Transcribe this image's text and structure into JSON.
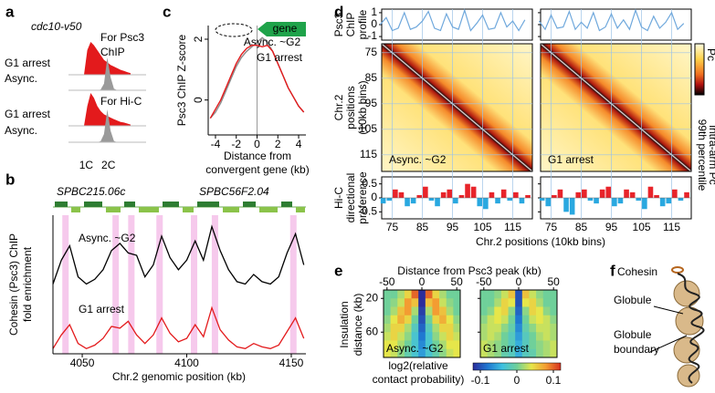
{
  "chart_data": [
    {
      "type": "density",
      "panel": "a",
      "strain": "cdc10-v50",
      "x": [
        0.9,
        1.05,
        1.2,
        1.35,
        1.5,
        1.65,
        1.8,
        1.95,
        2.1,
        2.25,
        2.4,
        2.55,
        2.7,
        2.85,
        3.0
      ],
      "xlim": [
        0.2,
        3.7
      ],
      "xticks": [
        {
          "value": 1,
          "label": "1C"
        },
        {
          "value": 2,
          "label": "2C"
        }
      ],
      "subplots": [
        {
          "title_lines": [
            "For Psc3",
            "ChIP"
          ],
          "series": [
            {
              "name": "G1 arrest",
              "color": "#e31a1c",
              "text_color": "#e31a1c",
              "values": [
                0,
                0.75,
                1,
                0.9,
                0.75,
                0.6,
                0.45,
                0.38,
                0.3,
                0.25,
                0.2,
                0.15,
                0.12,
                0.08,
                0.05
              ]
            },
            {
              "name": "Async.",
              "color": "#9a9a9a",
              "text_color": "#000000",
              "values": [
                0,
                0,
                0,
                0,
                0,
                0.02,
                0.2,
                1,
                0.4,
                0.05,
                0,
                0,
                0,
                0,
                0
              ]
            }
          ]
        },
        {
          "title_lines": [
            "For Hi-C"
          ],
          "series": [
            {
              "name": "G1 arrest",
              "color": "#e31a1c",
              "text_color": "#e31a1c",
              "values": [
                0,
                0.6,
                1,
                0.85,
                0.6,
                0.45,
                0.35,
                0.3,
                0.25,
                0.2,
                0.16,
                0.12,
                0.1,
                0.07,
                0.04
              ]
            },
            {
              "name": "Async.",
              "color": "#9a9a9a",
              "text_color": "#000000",
              "values": [
                0,
                0,
                0,
                0,
                0,
                0.03,
                0.25,
                1,
                0.35,
                0.04,
                0,
                0,
                0,
                0,
                0
              ]
            }
          ]
        }
      ]
    },
    {
      "type": "tracks",
      "panel": "b",
      "genes": [
        "SPBC215.06c",
        "SPBC56F2.04"
      ],
      "ylabel_lines": [
        "Cohesin (Psc3) ChIP",
        "fold enrichment"
      ],
      "xlabel": "Chr.2 genomic position (kb)",
      "x": [
        4036,
        4040,
        4044,
        4048,
        4052,
        4056,
        4060,
        4064,
        4068,
        4072,
        4076,
        4080,
        4084,
        4088,
        4092,
        4096,
        4100,
        4104,
        4108,
        4112,
        4116,
        4120,
        4124,
        4128,
        4132,
        4136,
        4140,
        4144,
        4148,
        4152,
        4156
      ],
      "xlim": [
        4036,
        4157
      ],
      "xticks": [
        4050,
        4100,
        4150
      ],
      "highlights": [
        4042,
        4066,
        4073.5,
        4087,
        4103.5,
        4113.5,
        4151
      ],
      "highlight_color": "#f6c9ec",
      "tracks": [
        {
          "name": "Async. ~G2",
          "color": "#000000",
          "ylim": [
            0.8,
            4
          ],
          "values": [
            1.2,
            2.2,
            2.8,
            1.5,
            1.2,
            1.4,
            1.8,
            2.6,
            2.9,
            2.5,
            2.4,
            1.5,
            2.0,
            3.2,
            2.3,
            1.8,
            2.2,
            3.0,
            2.2,
            3.6,
            2.6,
            1.8,
            1.3,
            1.2,
            1.6,
            1.3,
            1.2,
            1.5,
            2.5,
            3.3,
            2.0
          ]
        },
        {
          "name": "G1 arrest",
          "color": "#e31a1c",
          "ylim": [
            0.8,
            3.8
          ],
          "values": [
            1.0,
            1.8,
            2.4,
            1.3,
            1.0,
            1.2,
            1.6,
            2.3,
            2.2,
            2.6,
            1.8,
            1.3,
            1.8,
            2.8,
            1.9,
            1.4,
            1.6,
            2.4,
            1.7,
            3.4,
            2.1,
            1.5,
            1.1,
            1.0,
            1.3,
            1.1,
            1.0,
            1.2,
            2.0,
            2.8,
            1.6
          ]
        }
      ]
    },
    {
      "type": "line",
      "panel": "c",
      "ylabel": "Psc3 ChIP Z-score",
      "xlabel_lines": [
        "Distance from",
        "convergent gene (kb)"
      ],
      "gene_label": "gene",
      "x": [
        -4.5,
        -4,
        -3.5,
        -3,
        -2.5,
        -2,
        -1.5,
        -1,
        -0.5,
        0,
        0.5,
        1,
        1.5,
        2,
        2.5,
        3,
        3.5,
        4,
        4.5
      ],
      "xlim": [
        -4.7,
        4.7
      ],
      "xticks": [
        -4,
        -2,
        0,
        2,
        4
      ],
      "ylim": [
        -1.15,
        2.45
      ],
      "yticks": [
        0,
        2
      ],
      "series": [
        {
          "name": "Async. ~G2",
          "color": "#8c8c8c",
          "values": [
            -0.6,
            -0.4,
            -0.1,
            0.3,
            0.7,
            1.1,
            1.4,
            1.6,
            1.75,
            1.9,
            2.05,
            1.9,
            1.6,
            1.2,
            0.8,
            0.4,
            0.1,
            -0.2,
            -0.4
          ]
        },
        {
          "name": "G1 arrest",
          "color": "#e31a1c",
          "values": [
            -0.6,
            -0.3,
            0.0,
            0.4,
            0.8,
            1.2,
            1.5,
            1.7,
            1.8,
            1.8,
            1.75,
            1.8,
            1.6,
            1.2,
            0.8,
            0.4,
            0.1,
            -0.2,
            -0.4
          ]
        }
      ]
    },
    {
      "type": "hic-panel",
      "panel": "d",
      "profile_ylabel_lines": [
        "Psc3",
        "ChIP",
        "profile"
      ],
      "heatmap_ylabel_lines": [
        "Chr.2",
        "positions",
        "(10kb bins)"
      ],
      "bars_ylabel_lines": [
        "Hi-C",
        "directional",
        "preference"
      ],
      "xlabel": "Chr.2 positions (10kb bins)",
      "colorbar_label": "Pc",
      "colorbar_label_lines": [
        "99th percentile",
        "intra-arm Pc"
      ],
      "xlim": [
        71.5,
        121.5
      ],
      "xticks": [
        75,
        85,
        95,
        105,
        115
      ],
      "yticks": [
        75,
        85,
        95,
        105,
        115
      ],
      "profile_ylim": [
        -1.3,
        1.3
      ],
      "profile_yticks": [
        1,
        0,
        -1
      ],
      "profile_color": "#6fa8dc",
      "bars_ylim": [
        -0.75,
        0.75
      ],
      "bars_yticks": [
        0.5,
        0,
        -0.5
      ],
      "positive_color": "#e8242a",
      "negative_color": "#29a8e0",
      "profile_x": [
        71,
        73,
        75,
        77,
        79,
        81,
        83,
        85,
        87,
        89,
        91,
        93,
        95,
        97,
        99,
        101,
        103,
        105,
        107,
        109,
        111,
        113,
        115,
        117,
        119
      ],
      "bar_x": [
        72,
        74,
        76,
        78,
        80,
        82,
        84,
        86,
        88,
        90,
        92,
        94,
        96,
        98,
        100,
        102,
        104,
        106,
        108,
        110,
        112,
        114,
        116,
        118,
        120
      ],
      "conditions": [
        {
          "name": "Async. ~G2",
          "profile": [
            0,
            0.6,
            -0.5,
            -0.3,
            1.0,
            -0.4,
            -0.2,
            0.3,
            1.1,
            -0.3,
            -0.5,
            0.9,
            -0.2,
            -0.4,
            1.2,
            -0.5,
            0.1,
            0.8,
            -0.4,
            -0.3,
            1.0,
            -0.2,
            0.3,
            -0.5,
            0.4
          ],
          "bars": [
            -0.2,
            -0.1,
            0.3,
            0.2,
            -0.3,
            -0.2,
            0.1,
            0.4,
            -0.1,
            -0.3,
            0.2,
            0.3,
            -0.2,
            0.1,
            0.5,
            0.4,
            -0.3,
            -0.4,
            0.2,
            -0.2,
            0.3,
            -0.1,
            0.2,
            -0.2,
            0.1
          ]
        },
        {
          "name": "G1 arrest",
          "profile": [
            0.3,
            -0.4,
            0.8,
            -0.3,
            -0.2,
            1.1,
            -0.4,
            0.2,
            -0.3,
            1.0,
            -0.5,
            -0.2,
            0.9,
            -0.3,
            0.4,
            -0.4,
            1.2,
            -0.2,
            -0.5,
            0.7,
            -0.3,
            0.2,
            1.0,
            -0.4,
            0.1
          ],
          "bars": [
            -0.1,
            -0.3,
            0.1,
            0.3,
            -0.5,
            -0.6,
            0.2,
            0.3,
            -0.1,
            -0.2,
            0.3,
            0.4,
            -0.3,
            -0.2,
            0.3,
            0.2,
            -0.1,
            -0.4,
            0.4,
            0.1,
            -0.3,
            -0.2,
            0.3,
            -0.1,
            0.2
          ]
        }
      ]
    },
    {
      "type": "heatmap",
      "panel": "e",
      "xlabel": "Distance from Psc3 peak (kb)",
      "ylabel_lines": [
        "Insulation",
        "distance (kb)"
      ],
      "colorbar_label_lines": [
        "log2(relative",
        "contact probability)"
      ],
      "x": [
        -50,
        -40,
        -30,
        -20,
        -10,
        0,
        10,
        20,
        30,
        40,
        50
      ],
      "y": [
        15,
        25,
        35,
        45,
        55,
        65,
        75,
        85
      ],
      "xlim": [
        -55,
        55
      ],
      "ylim": [
        10,
        90
      ],
      "xticks": [
        -50,
        0,
        50
      ],
      "yticks": [
        20,
        60
      ],
      "clim": [
        -0.12,
        0.12
      ],
      "cticks": [
        -0.1,
        0,
        0.1
      ],
      "colormap": [
        "#2b2d9c",
        "#1f78d1",
        "#3ec0e0",
        "#6fd09a",
        "#e6e64a",
        "#f39c32",
        "#d7301f"
      ],
      "maps": [
        {
          "name": "Async. ~G2",
          "z": [
            [
              0,
              0,
              0.02,
              0.05,
              0.1,
              -0.12,
              0.1,
              0.05,
              0.02,
              0,
              0
            ],
            [
              0,
              0.01,
              0.03,
              0.08,
              0.06,
              -0.12,
              0.06,
              0.08,
              0.03,
              0.01,
              0
            ],
            [
              0,
              0.02,
              0.06,
              0.08,
              0.02,
              -0.11,
              0.02,
              0.08,
              0.06,
              0.02,
              0
            ],
            [
              0.01,
              0.04,
              0.07,
              0.05,
              0,
              -0.1,
              0,
              0.05,
              0.07,
              0.04,
              0.01
            ],
            [
              0.02,
              0.05,
              0.05,
              0.02,
              -0.02,
              -0.09,
              -0.02,
              0.02,
              0.05,
              0.05,
              0.02
            ],
            [
              0.03,
              0.05,
              0.03,
              0.01,
              -0.03,
              -0.08,
              -0.03,
              0.01,
              0.03,
              0.05,
              0.03
            ],
            [
              0.04,
              0.04,
              0.02,
              0,
              -0.03,
              -0.07,
              -0.03,
              0,
              0.02,
              0.04,
              0.04
            ],
            [
              0.04,
              0.03,
              0.01,
              -0.01,
              -0.03,
              -0.06,
              -0.03,
              -0.01,
              0.01,
              0.03,
              0.04
            ]
          ]
        },
        {
          "name": "G1 arrest",
          "z": [
            [
              0,
              0,
              0.01,
              0.03,
              0.06,
              -0.1,
              0.06,
              0.03,
              0.01,
              0,
              0
            ],
            [
              0,
              0,
              0.02,
              0.05,
              0.04,
              -0.1,
              0.04,
              0.05,
              0.02,
              0,
              0
            ],
            [
              0,
              0.01,
              0.04,
              0.05,
              0.01,
              -0.09,
              0.01,
              0.05,
              0.04,
              0.01,
              0
            ],
            [
              0.01,
              0.03,
              0.04,
              0.03,
              0,
              -0.08,
              0,
              0.03,
              0.04,
              0.03,
              0.01
            ],
            [
              0.02,
              0.03,
              0.03,
              0.01,
              -0.01,
              -0.07,
              -0.01,
              0.01,
              0.03,
              0.03,
              0.02
            ],
            [
              0.02,
              0.03,
              0.02,
              0,
              -0.02,
              -0.06,
              -0.02,
              0,
              0.02,
              0.03,
              0.02
            ],
            [
              0.03,
              0.02,
              0.01,
              0,
              -0.02,
              -0.05,
              -0.02,
              0,
              0.01,
              0.02,
              0.03
            ],
            [
              0.03,
              0.02,
              0.01,
              -0.01,
              -0.02,
              -0.05,
              -0.02,
              -0.01,
              0.01,
              0.02,
              0.03
            ]
          ]
        }
      ]
    },
    {
      "type": "diagram",
      "panel": "f",
      "labels": [
        "Cohesin",
        "Globule"
      ],
      "boundary_lines": [
        "Globule",
        "boundary"
      ]
    }
  ]
}
